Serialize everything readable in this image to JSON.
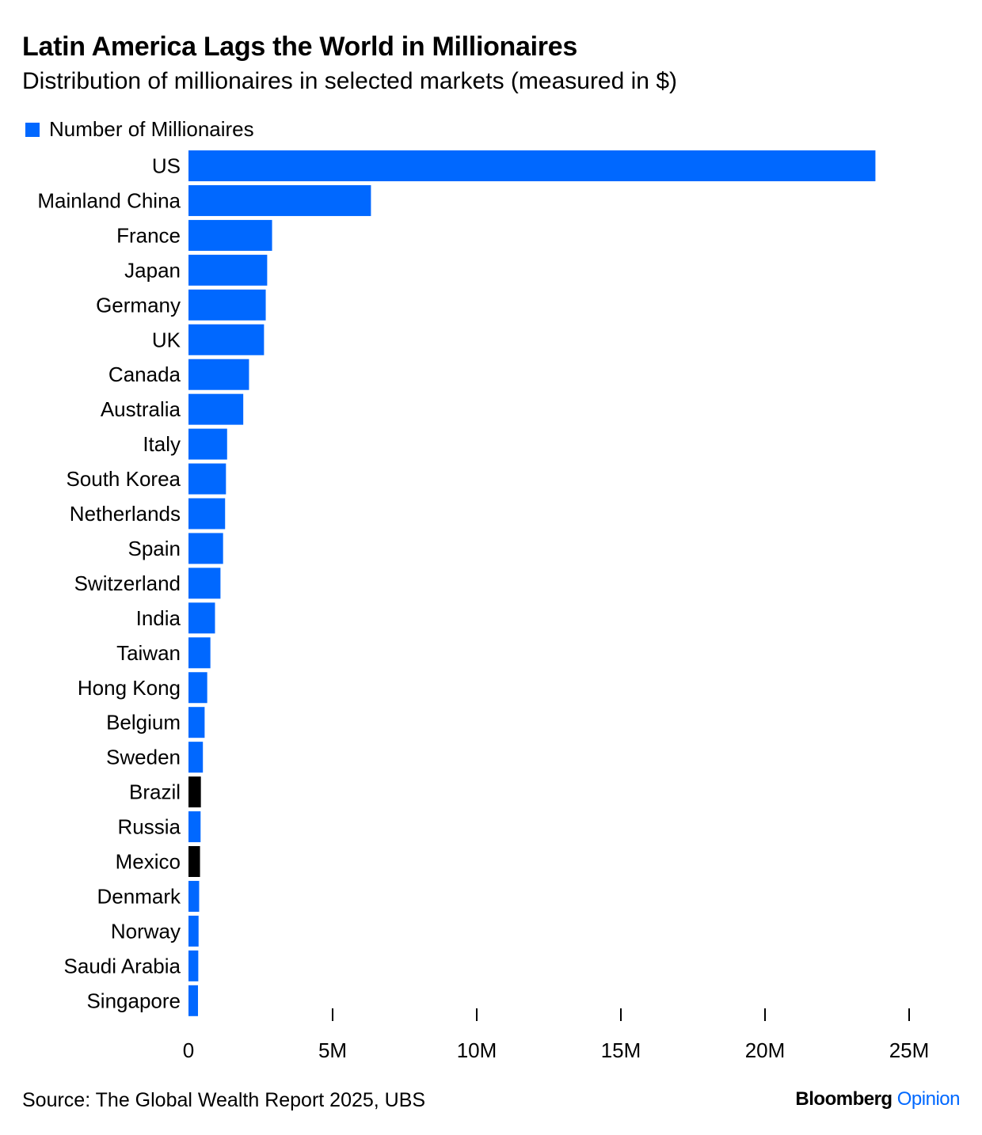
{
  "header": {
    "title": "Latin America Lags the World in Millionaires",
    "subtitle": "Distribution of millionaires in selected markets (measured in $)"
  },
  "legend": {
    "label": "Number of Millionaires",
    "color": "#0068ff"
  },
  "colors": {
    "default_bar": "#0068ff",
    "highlight_bar": "#000000"
  },
  "footer": {
    "source": "Source: The Global Wealth Report 2025, UBS",
    "brand_main": "Bloomberg",
    "brand_accent": "Opinion"
  },
  "chart_data": {
    "type": "bar",
    "orientation": "horizontal",
    "categories": [
      "US",
      "Mainland China",
      "France",
      "Japan",
      "Germany",
      "UK",
      "Canada",
      "Australia",
      "Italy",
      "South Korea",
      "Netherlands",
      "Spain",
      "Switzerland",
      "India",
      "Taiwan",
      "Hong Kong",
      "Belgium",
      "Sweden",
      "Brazil",
      "Russia",
      "Mexico",
      "Denmark",
      "Norway",
      "Saudi Arabia",
      "Singapore"
    ],
    "values": [
      23830000,
      6330000,
      2900000,
      2730000,
      2680000,
      2620000,
      2100000,
      1900000,
      1340000,
      1300000,
      1270000,
      1200000,
      1110000,
      920000,
      760000,
      650000,
      560000,
      500000,
      430000,
      420000,
      400000,
      370000,
      350000,
      340000,
      330000
    ],
    "highlighted": [
      "Brazil",
      "Mexico"
    ],
    "series": [
      {
        "name": "Number of Millionaires",
        "values": [
          23830000,
          6330000,
          2900000,
          2730000,
          2680000,
          2620000,
          2100000,
          1900000,
          1340000,
          1300000,
          1270000,
          1200000,
          1110000,
          920000,
          760000,
          650000,
          560000,
          500000,
          430000,
          420000,
          400000,
          370000,
          350000,
          340000,
          330000
        ]
      }
    ],
    "xlim": [
      0,
      25000000
    ],
    "xticks": [
      0,
      5000000,
      10000000,
      15000000,
      20000000,
      25000000
    ],
    "xtick_labels": [
      "0",
      "5M",
      "10M",
      "15M",
      "20M",
      "25M"
    ],
    "grid": false,
    "legend_position": "top-left"
  }
}
